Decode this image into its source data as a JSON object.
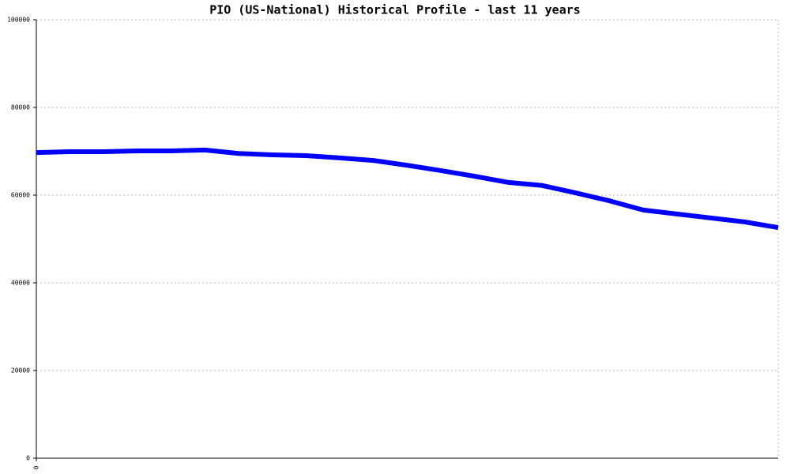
{
  "chart_data": {
    "type": "line",
    "title": "PIO (US-National) Historical Profile - last 11 years",
    "x": [
      0,
      1,
      2,
      3,
      4,
      5,
      6,
      7,
      8,
      9,
      10,
      11,
      12,
      13,
      14,
      15,
      16,
      17,
      18,
      19,
      20,
      21,
      22
    ],
    "series": [
      {
        "color": "#0000ff",
        "values": [
          69700,
          69900,
          69900,
          70100,
          70100,
          70300,
          69500,
          69200,
          69000,
          68500,
          67900,
          66800,
          65600,
          64300,
          62900,
          62200,
          60500,
          58700,
          56600,
          55700,
          54800,
          53900,
          52600
        ]
      }
    ],
    "xlim": [
      0,
      22
    ],
    "xticks": [
      0
    ],
    "ylim": [
      0,
      100000
    ],
    "yticks": [
      0,
      20000,
      40000,
      60000,
      80000,
      100000
    ],
    "grid": true
  }
}
